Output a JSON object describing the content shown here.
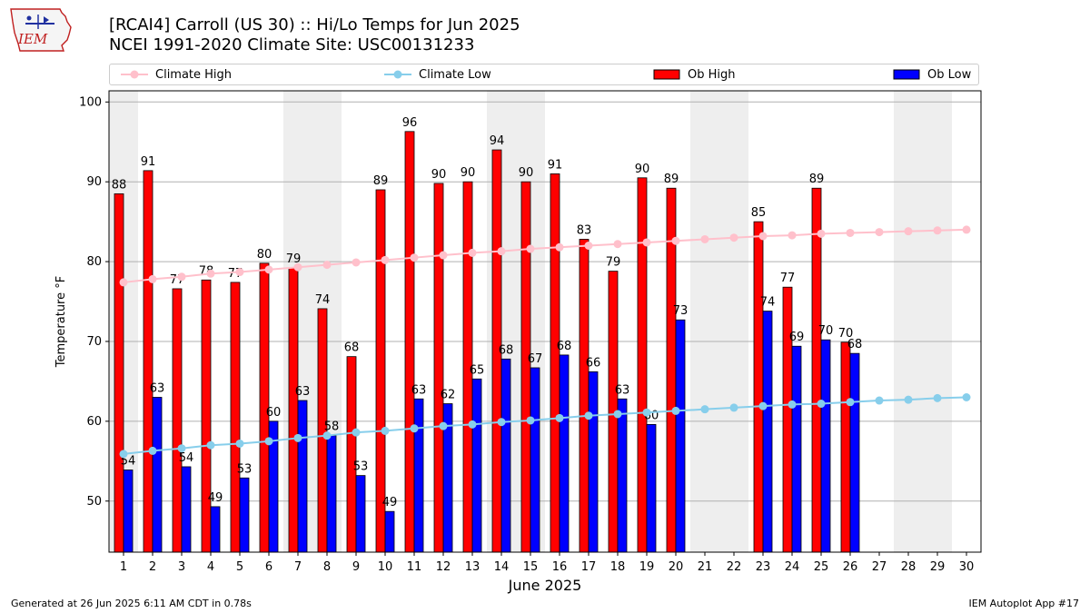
{
  "header": {
    "title_line1": "[RCAI4] Carroll (US 30) :: Hi/Lo Temps for Jun 2025",
    "title_line2": "NCEI 1991-2020 Climate Site: USC00131233",
    "logo_text": "IEM"
  },
  "legend": {
    "climate_high": "Climate High",
    "climate_low": "Climate Low",
    "ob_high": "Ob High",
    "ob_low": "Ob Low"
  },
  "footer": {
    "left": "Generated at 26 Jun 2025 6:11 AM CDT in 0.78s",
    "right": "IEM Autoplot App #17"
  },
  "colors": {
    "climate_high": "#ffc0cb",
    "climate_low": "#87ceeb",
    "ob_high": "#ff0000",
    "ob_low": "#0000ff",
    "weekend_band": "#eeeeee",
    "grid": "#b0b0b0"
  },
  "chart_data": {
    "type": "bar",
    "xlabel": "June 2025",
    "ylabel": "Temperature °F",
    "ylim": [
      43.6,
      101.4
    ],
    "yticks": [
      50,
      60,
      70,
      80,
      90,
      100
    ],
    "grid": "horizontal",
    "legend_position": "top",
    "categories": [
      1,
      2,
      3,
      4,
      5,
      6,
      7,
      8,
      9,
      10,
      11,
      12,
      13,
      14,
      15,
      16,
      17,
      18,
      19,
      20,
      21,
      22,
      23,
      24,
      25,
      26,
      27,
      28,
      29,
      30
    ],
    "weekend_days": [
      [
        1,
        1
      ],
      [
        7,
        8
      ],
      [
        14,
        15
      ],
      [
        21,
        22
      ],
      [
        28,
        29
      ]
    ],
    "series": [
      {
        "name": "Ob High",
        "kind": "bar",
        "values": [
          88.5,
          91.4,
          76.6,
          77.7,
          77.4,
          79.8,
          79.2,
          74.1,
          68.1,
          89.0,
          96.3,
          89.8,
          90.0,
          94.0,
          90.0,
          91.0,
          82.8,
          78.8,
          90.5,
          89.2,
          null,
          null,
          85.0,
          76.8,
          89.2,
          69.9,
          null,
          null,
          null,
          null
        ],
        "labels": [
          88,
          91,
          77,
          78,
          77,
          80,
          79,
          74,
          68,
          89,
          96,
          90,
          90,
          94,
          90,
          91,
          83,
          79,
          90,
          89,
          null,
          null,
          85,
          77,
          89,
          70,
          null,
          null,
          null,
          null
        ]
      },
      {
        "name": "Ob Low",
        "kind": "bar",
        "values": [
          53.9,
          63.0,
          54.3,
          49.3,
          52.9,
          60.0,
          62.6,
          58.2,
          53.2,
          48.7,
          62.8,
          62.2,
          65.3,
          67.8,
          66.7,
          68.3,
          66.2,
          62.8,
          59.6,
          72.7,
          null,
          null,
          73.8,
          69.4,
          70.2,
          68.5,
          null,
          null,
          null,
          null
        ],
        "labels": [
          54,
          63,
          54,
          49,
          53,
          60,
          63,
          58,
          53,
          49,
          63,
          62,
          65,
          68,
          67,
          68,
          66,
          63,
          60,
          73,
          null,
          null,
          74,
          69,
          70,
          68,
          null,
          null,
          null,
          null
        ]
      },
      {
        "name": "Climate High",
        "kind": "line",
        "values": [
          77.4,
          77.8,
          78.1,
          78.5,
          78.7,
          79.0,
          79.3,
          79.6,
          79.9,
          80.2,
          80.5,
          80.8,
          81.1,
          81.3,
          81.6,
          81.8,
          82.0,
          82.2,
          82.4,
          82.6,
          82.8,
          83.0,
          83.2,
          83.3,
          83.5,
          83.6,
          83.7,
          83.8,
          83.9,
          84.0
        ]
      },
      {
        "name": "Climate Low",
        "kind": "line",
        "values": [
          55.9,
          56.3,
          56.6,
          57.0,
          57.2,
          57.5,
          57.9,
          58.2,
          58.6,
          58.8,
          59.1,
          59.4,
          59.6,
          59.9,
          60.1,
          60.4,
          60.7,
          60.9,
          61.1,
          61.3,
          61.5,
          61.7,
          61.9,
          62.1,
          62.2,
          62.4,
          62.6,
          62.7,
          62.9,
          63.0
        ]
      }
    ]
  }
}
